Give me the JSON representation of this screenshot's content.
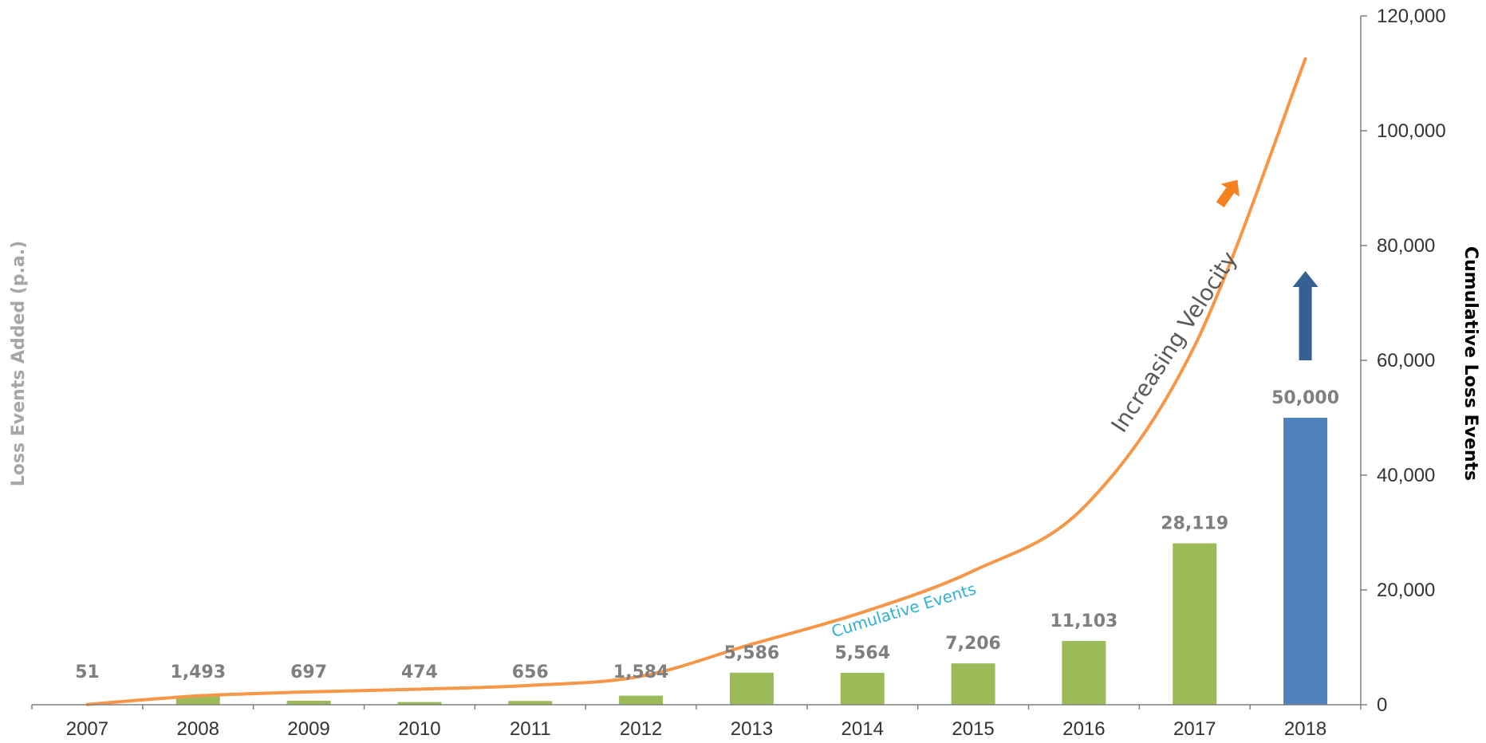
{
  "chart_data": {
    "type": "bar",
    "categories": [
      "2007",
      "2008",
      "2009",
      "2010",
      "2011",
      "2012",
      "2013",
      "2014",
      "2015",
      "2016",
      "2017",
      "2018"
    ],
    "series": [
      {
        "type": "bar",
        "axis": "left",
        "values": [
          51,
          1493,
          697,
          474,
          656,
          1584,
          5586,
          5564,
          7206,
          11103,
          28119,
          50000
        ],
        "labels": [
          "51",
          "1,493",
          "697",
          "474",
          "656",
          "1,584",
          "5,586",
          "5,564",
          "7,206",
          "11,103",
          "28,119",
          "50,000"
        ],
        "colors": [
          "#9bbb59",
          "#9bbb59",
          "#9bbb59",
          "#9bbb59",
          "#9bbb59",
          "#9bbb59",
          "#9bbb59",
          "#9bbb59",
          "#9bbb59",
          "#9bbb59",
          "#9bbb59",
          "#4f81bd"
        ]
      },
      {
        "name": "Cumulative Events",
        "type": "line",
        "axis": "right",
        "values": [
          51,
          1544,
          2241,
          2715,
          3371,
          4955,
          10541,
          16105,
          23311,
          34414,
          62533,
          112533
        ],
        "color": "#f79646"
      }
    ],
    "ylabel": "Loss Events Added (p.a.)",
    "y2label": "Cumulative Loss Events",
    "ylim": [
      0,
      120000
    ],
    "y2ticks": [
      "0",
      "20,000",
      "40,000",
      "60,000",
      "80,000",
      "100,000",
      "120,000"
    ],
    "annotations": {
      "cumulative": "Cumulative Events",
      "velocity": "Increasing Velocity"
    },
    "colors": {
      "bar": "#9bbb59",
      "highlight_bar": "#4f81bd",
      "line": "#f79646",
      "arrow_orange": "#f58220",
      "arrow_blue": "#376092",
      "cumulative_label": "#31b0d5"
    },
    "grid": false,
    "legend": "none"
  }
}
